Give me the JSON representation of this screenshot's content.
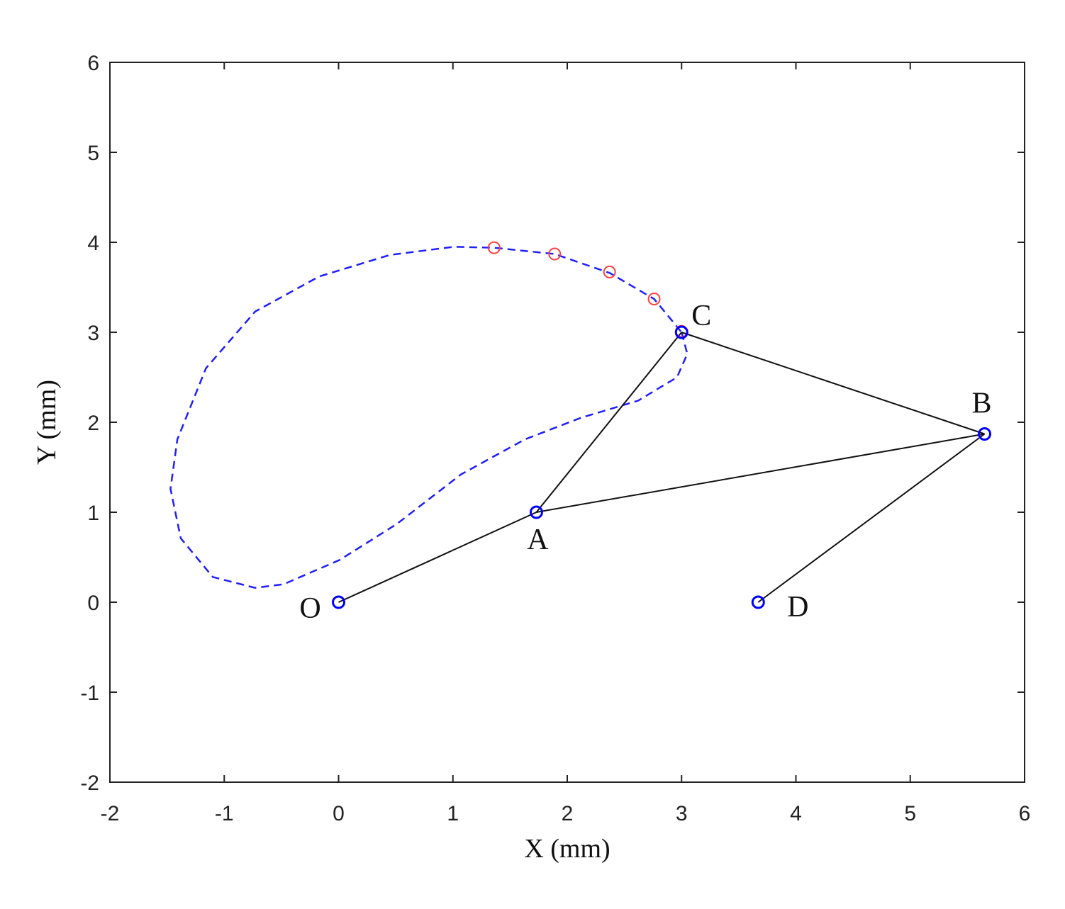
{
  "chart_data": {
    "type": "linkage",
    "xlabel": "X (mm)",
    "ylabel": "Y (mm)",
    "xlim": [
      -2,
      6
    ],
    "ylim": [
      -2,
      6
    ],
    "xticks": [
      -2,
      -1,
      0,
      1,
      2,
      3,
      4,
      5,
      6
    ],
    "yticks": [
      -2,
      -1,
      0,
      1,
      2,
      3,
      4,
      5,
      6
    ],
    "grid": false,
    "curve": {
      "color": "#1f1fff",
      "x": [
        3.0,
        3.05,
        2.96,
        2.62,
        2.12,
        1.63,
        1.07,
        0.51,
        0.01,
        -0.48,
        -0.73,
        -1.1,
        -1.38,
        -1.47,
        -1.41,
        -1.16,
        -0.73,
        -0.17,
        0.45,
        1.01,
        1.36,
        1.89,
        2.37,
        2.76,
        3.0
      ],
      "y": [
        3.0,
        2.76,
        2.5,
        2.24,
        2.05,
        1.81,
        1.42,
        0.87,
        0.47,
        0.2,
        0.16,
        0.28,
        0.71,
        1.26,
        1.81,
        2.6,
        3.23,
        3.62,
        3.86,
        3.95,
        3.94,
        3.87,
        3.66,
        3.37,
        3.0
      ]
    },
    "highlight_points": {
      "color": "#ff4040",
      "x": [
        1.36,
        1.89,
        2.37,
        2.76,
        3.0
      ],
      "y": [
        3.94,
        3.87,
        3.67,
        3.37,
        3.01
      ]
    },
    "joints": {
      "color": "#0000ff",
      "labels": [
        "O",
        "A",
        "C",
        "B",
        "D"
      ],
      "x": [
        0,
        1.73,
        3.0,
        5.65,
        3.67
      ],
      "y": [
        0,
        1.0,
        3.0,
        1.87,
        0
      ]
    },
    "link_color": "#111111",
    "links": [
      [
        "O",
        "A"
      ],
      [
        "A",
        "C"
      ],
      [
        "A",
        "B"
      ],
      [
        "C",
        "B"
      ],
      [
        "B",
        "D"
      ]
    ]
  }
}
